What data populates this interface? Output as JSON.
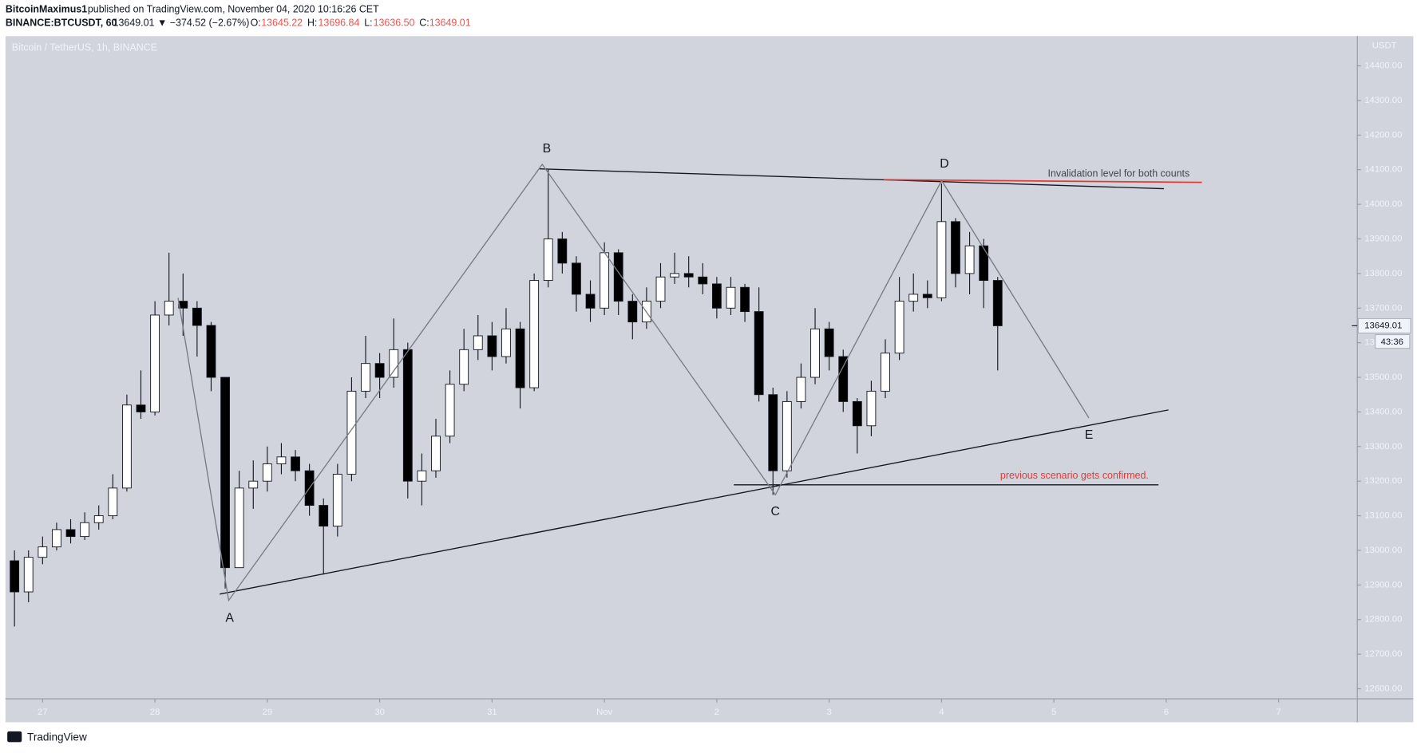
{
  "header": {
    "author": "BitcoinMaximus1",
    "published": "published on TradingView.com, November 04, 2020 10:16:26 CET",
    "symbol": "BINANCE:BTCUSDT, 60",
    "last": "13649.01",
    "change": "▼ −374.52 (−2.67%)",
    "ohlc": [
      {
        "label": "O:",
        "value": "13645.22"
      },
      {
        "label": "H:",
        "value": "13696.84"
      },
      {
        "label": "L:",
        "value": "13636.50"
      },
      {
        "label": "C:",
        "value": "13649.01"
      }
    ]
  },
  "chart_data": {
    "type": "candlestick",
    "title": "Bitcoin / TetherUS, 1h, BINANCE",
    "y_label": "USDT",
    "up_color": "#ffffff",
    "down_color": "#000000",
    "xlim": [
      26.67,
      38.7
    ],
    "xticks": [
      27,
      28,
      29,
      30,
      31,
      {
        "value": 32,
        "label": "Nov"
      },
      {
        "value": 33,
        "label": "2"
      },
      {
        "value": 34,
        "label": "3"
      },
      {
        "value": 35,
        "label": "4"
      },
      {
        "value": 36,
        "label": "5"
      },
      {
        "value": 37,
        "label": "6"
      },
      {
        "value": 38,
        "label": "7"
      }
    ],
    "ylim": [
      12571,
      14486
    ],
    "yticks": [
      {
        "value": 12600,
        "label": "12600.00"
      },
      {
        "value": 12700,
        "label": "12700.00"
      },
      {
        "value": 12800,
        "label": "12800.00"
      },
      {
        "value": 12900,
        "label": "12900.00"
      },
      {
        "value": 13000,
        "label": "13000.00"
      },
      {
        "value": 13100,
        "label": "13100.00"
      },
      {
        "value": 13200,
        "label": "13200.00"
      },
      {
        "value": 13300,
        "label": "13300.00"
      },
      {
        "value": 13400,
        "label": "13400.00"
      },
      {
        "value": 13500,
        "label": "13500.00"
      },
      {
        "value": 13600,
        "label": "13600.00"
      },
      {
        "value": 13700,
        "label": "13700.00"
      },
      {
        "value": 13800,
        "label": "13800.00"
      },
      {
        "value": 13900,
        "label": "13900.00"
      },
      {
        "value": 14000,
        "label": "14000.00"
      },
      {
        "value": 14100,
        "label": "14100.00"
      },
      {
        "value": 14200,
        "label": "14200.00"
      },
      {
        "value": 14300,
        "label": "14300.00"
      },
      {
        "value": 14400,
        "label": "14400.00"
      }
    ],
    "x": [
      26.75,
      26.875,
      27.0,
      27.125,
      27.25,
      27.375,
      27.5,
      27.625,
      27.75,
      27.875,
      28.0,
      28.125,
      28.25,
      28.375,
      28.5,
      28.625,
      28.75,
      28.875,
      29.0,
      29.125,
      29.25,
      29.375,
      29.5,
      29.625,
      29.75,
      29.875,
      30.0,
      30.125,
      30.25,
      30.375,
      30.5,
      30.625,
      30.75,
      30.875,
      31.0,
      31.125,
      31.25,
      31.375,
      31.5,
      31.625,
      31.75,
      31.875,
      32.0,
      32.125,
      32.25,
      32.375,
      32.5,
      32.625,
      32.75,
      32.875,
      33.0,
      33.125,
      33.25,
      33.375,
      33.5,
      33.625,
      33.75,
      33.875,
      34.0,
      34.125,
      34.25,
      34.375,
      34.5,
      34.625,
      34.75,
      34.875,
      35.0,
      35.125,
      35.25,
      35.375,
      35.5
    ],
    "open": [
      12970,
      12880,
      12980,
      13010,
      13060,
      13040,
      13080,
      13100,
      13180,
      13420,
      13400,
      13680,
      13720,
      13700,
      13650,
      13500,
      12950,
      13180,
      13200,
      13250,
      13270,
      13230,
      13130,
      13070,
      13220,
      13460,
      13540,
      13500,
      13580,
      13200,
      13230,
      13330,
      13480,
      13580,
      13620,
      13560,
      13640,
      13470,
      13780,
      13900,
      13830,
      13740,
      13700,
      13860,
      13720,
      13660,
      13720,
      13790,
      13800,
      13790,
      13770,
      13700,
      13760,
      13690,
      13450,
      13230,
      13430,
      13500,
      13640,
      13560,
      13430,
      13360,
      13460,
      13570,
      13720,
      13740,
      13730,
      13950,
      13800,
      13880,
      13780
    ],
    "high": [
      13000,
      13000,
      13040,
      13080,
      13090,
      13110,
      13130,
      13220,
      13450,
      13520,
      13720,
      13860,
      13800,
      13720,
      13660,
      13500,
      13230,
      13260,
      13300,
      13310,
      13290,
      13250,
      13150,
      13250,
      13500,
      13620,
      13570,
      13670,
      13600,
      13280,
      13380,
      13520,
      13640,
      13680,
      13660,
      13700,
      13660,
      13800,
      14100,
      13920,
      13850,
      13780,
      13890,
      13870,
      13740,
      13760,
      13830,
      13860,
      13850,
      13830,
      13790,
      13790,
      13770,
      13760,
      13470,
      13460,
      13540,
      13700,
      13660,
      13580,
      13440,
      13490,
      13610,
      13790,
      13800,
      13780,
      14060,
      13960,
      13920,
      13900,
      13790
    ],
    "low": [
      12780,
      12850,
      12960,
      13000,
      13020,
      13030,
      13060,
      13090,
      13170,
      13380,
      13390,
      13650,
      13620,
      13560,
      13460,
      12890,
      12950,
      13120,
      13170,
      13220,
      13200,
      13100,
      12930,
      13040,
      13200,
      13440,
      13440,
      13470,
      13150,
      13130,
      13210,
      13310,
      13460,
      13550,
      13520,
      13540,
      13410,
      13460,
      13760,
      13800,
      13690,
      13660,
      13680,
      13680,
      13610,
      13640,
      13700,
      13770,
      13760,
      13740,
      13670,
      13680,
      13660,
      13430,
      13160,
      13210,
      13410,
      13480,
      13520,
      13400,
      13280,
      13330,
      13440,
      13550,
      13690,
      13700,
      13720,
      13760,
      13740,
      13700,
      13520
    ],
    "close": [
      12880,
      12980,
      13010,
      13060,
      13040,
      13080,
      13100,
      13180,
      13420,
      13400,
      13680,
      13720,
      13700,
      13650,
      13500,
      12950,
      13180,
      13200,
      13250,
      13270,
      13230,
      13130,
      13070,
      13220,
      13460,
      13540,
      13500,
      13580,
      13200,
      13230,
      13330,
      13480,
      13580,
      13620,
      13560,
      13640,
      13470,
      13780,
      13900,
      13830,
      13740,
      13700,
      13860,
      13720,
      13660,
      13720,
      13790,
      13800,
      13790,
      13770,
      13700,
      13760,
      13690,
      13450,
      13230,
      13430,
      13500,
      13640,
      13560,
      13430,
      13360,
      13460,
      13570,
      13720,
      13740,
      13730,
      13950,
      13800,
      13880,
      13780,
      13649.01
    ],
    "last_price": {
      "value": 13649.01,
      "label": "13649.01"
    },
    "countdown": "43:36",
    "annotations": {
      "wave_a": "A",
      "wave_b": "B",
      "wave_c": "C",
      "wave_d": "D",
      "wave_e": "E",
      "invalidation": "Invalidation level for both counts",
      "confirmation": "previous scenario gets confirmed."
    }
  },
  "footer": {
    "brand": "TradingView"
  }
}
